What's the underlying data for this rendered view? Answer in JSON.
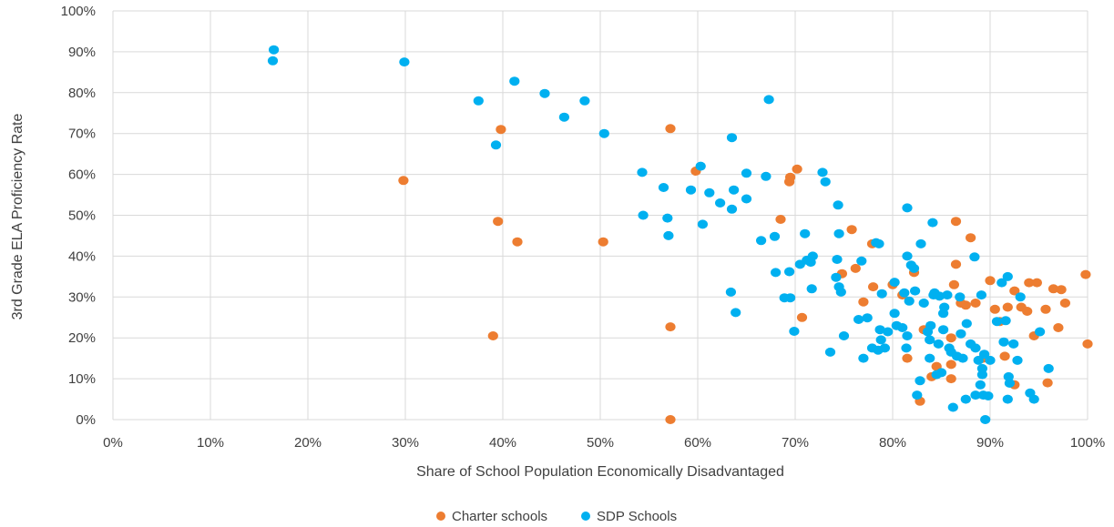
{
  "chart_data": {
    "type": "scatter",
    "title": "",
    "xlabel": "Share of School Population Economically Disadvantaged",
    "ylabel": "3rd Grade ELA Proficiency Rate",
    "xlim": [
      0,
      100
    ],
    "ylim": [
      0,
      100
    ],
    "x_ticks": [
      "0%",
      "10%",
      "20%",
      "30%",
      "40%",
      "50%",
      "60%",
      "70%",
      "80%",
      "90%",
      "100%"
    ],
    "y_ticks": [
      "0%",
      "10%",
      "20%",
      "30%",
      "40%",
      "50%",
      "60%",
      "70%",
      "80%",
      "90%",
      "100%"
    ],
    "grid": true,
    "legend_position": "bottom",
    "series": [
      {
        "name": "Charter schools",
        "color": "#ed7d31",
        "points": [
          [
            29.8,
            58.5
          ],
          [
            39.8,
            71
          ],
          [
            39.5,
            48.5
          ],
          [
            41.5,
            43.5
          ],
          [
            39,
            20.5
          ],
          [
            50.3,
            43.5
          ],
          [
            57.2,
            71.2
          ],
          [
            59.8,
            60.8
          ],
          [
            57.2,
            22.7
          ],
          [
            57.2,
            0
          ],
          [
            69.5,
            59.3
          ],
          [
            70.2,
            61.3
          ],
          [
            69.4,
            58.2
          ],
          [
            68.5,
            49
          ],
          [
            70.7,
            25
          ],
          [
            74.8,
            35.7
          ],
          [
            75.8,
            46.5
          ],
          [
            76.2,
            37
          ],
          [
            77,
            28.8
          ],
          [
            77.9,
            43
          ],
          [
            78,
            32.5
          ],
          [
            80,
            33
          ],
          [
            81,
            30.5
          ],
          [
            81.5,
            15
          ],
          [
            82.2,
            36
          ],
          [
            82.8,
            4.5
          ],
          [
            83.2,
            22
          ],
          [
            84,
            10.5
          ],
          [
            84.5,
            13
          ],
          [
            86,
            20
          ],
          [
            86,
            13.5
          ],
          [
            86.3,
            33
          ],
          [
            86.5,
            48.5
          ],
          [
            86.5,
            38
          ],
          [
            86,
            10
          ],
          [
            87,
            28.5
          ],
          [
            87.5,
            28
          ],
          [
            88,
            44.5
          ],
          [
            88.5,
            28.5
          ],
          [
            89.3,
            15
          ],
          [
            90,
            34
          ],
          [
            90.5,
            27
          ],
          [
            91,
            24
          ],
          [
            91.5,
            15.5
          ],
          [
            91.8,
            27.5
          ],
          [
            92.5,
            31.5
          ],
          [
            92.5,
            8.5
          ],
          [
            93.2,
            27.5
          ],
          [
            93.8,
            26.5
          ],
          [
            94,
            33.5
          ],
          [
            94.5,
            20.5
          ],
          [
            94.8,
            33.5
          ],
          [
            95.7,
            27
          ],
          [
            95.9,
            9
          ],
          [
            96.5,
            32
          ],
          [
            97,
            22.5
          ],
          [
            97.3,
            31.8
          ],
          [
            97.7,
            28.5
          ],
          [
            99.8,
            35.5
          ],
          [
            100,
            18.5
          ]
        ]
      },
      {
        "name": "SDP Schools",
        "color": "#00b0f0",
        "points": [
          [
            16.5,
            90.5
          ],
          [
            16.4,
            87.8
          ],
          [
            29.9,
            87.5
          ],
          [
            37.5,
            78
          ],
          [
            41.2,
            82.8
          ],
          [
            44.3,
            79.8
          ],
          [
            48.4,
            78
          ],
          [
            46.3,
            74
          ],
          [
            39.3,
            67.2
          ],
          [
            50.4,
            70
          ],
          [
            54.3,
            60.5
          ],
          [
            54.4,
            50
          ],
          [
            56.5,
            56.8
          ],
          [
            56.9,
            49.3
          ],
          [
            57,
            45
          ],
          [
            59.3,
            56.2
          ],
          [
            60.3,
            62
          ],
          [
            60.5,
            47.8
          ],
          [
            61.2,
            55.5
          ],
          [
            62.3,
            53
          ],
          [
            63.5,
            69
          ],
          [
            63.5,
            51.5
          ],
          [
            63.7,
            56.2
          ],
          [
            63.4,
            31.2
          ],
          [
            63.9,
            26.2
          ],
          [
            65,
            60.3
          ],
          [
            65,
            54
          ],
          [
            66.5,
            43.8
          ],
          [
            67.3,
            78.3
          ],
          [
            67,
            59.5
          ],
          [
            67.9,
            44.8
          ],
          [
            68,
            36
          ],
          [
            68.9,
            29.8
          ],
          [
            69.4,
            36.2
          ],
          [
            69.5,
            29.8
          ],
          [
            69.9,
            21.6
          ],
          [
            70.5,
            38
          ],
          [
            71,
            45.5
          ],
          [
            71.2,
            39
          ],
          [
            71.6,
            38.5
          ],
          [
            71.8,
            40
          ],
          [
            71.7,
            32
          ],
          [
            72.8,
            60.5
          ],
          [
            73.1,
            58.2
          ],
          [
            73.6,
            16.5
          ],
          [
            74.2,
            34.8
          ],
          [
            74.5,
            45.5
          ],
          [
            74.4,
            52.5
          ],
          [
            74.3,
            39.2
          ],
          [
            74.5,
            32.5
          ],
          [
            74.7,
            31.2
          ],
          [
            75,
            20.5
          ],
          [
            76.5,
            24.5
          ],
          [
            76.8,
            38.8
          ],
          [
            77,
            15
          ],
          [
            77.4,
            24.9
          ],
          [
            77.9,
            17.5
          ],
          [
            78.3,
            43.3
          ],
          [
            78.6,
            43
          ],
          [
            78.5,
            17
          ],
          [
            78.7,
            22
          ],
          [
            78.8,
            19.5
          ],
          [
            78.9,
            30.8
          ],
          [
            79.2,
            17.5
          ],
          [
            79.5,
            21.5
          ],
          [
            80.2,
            26
          ],
          [
            80.2,
            33.6
          ],
          [
            80.4,
            23
          ],
          [
            81,
            22.5
          ],
          [
            81.2,
            31
          ],
          [
            81.4,
            17.5
          ],
          [
            81.5,
            40
          ],
          [
            81.5,
            20.5
          ],
          [
            81.5,
            51.8
          ],
          [
            81.7,
            29
          ],
          [
            81.9,
            37.8
          ],
          [
            82.2,
            37
          ],
          [
            82.3,
            31.5
          ],
          [
            82.5,
            6
          ],
          [
            82.9,
            43
          ],
          [
            82.8,
            9.5
          ],
          [
            83.2,
            28.5
          ],
          [
            83.6,
            21.5
          ],
          [
            83.8,
            19.5
          ],
          [
            83.9,
            23
          ],
          [
            83.8,
            15
          ],
          [
            84.1,
            48.2
          ],
          [
            84.2,
            30.5
          ],
          [
            84.3,
            31
          ],
          [
            84.5,
            11
          ],
          [
            84.7,
            18.5
          ],
          [
            84.8,
            30.2
          ],
          [
            85,
            11.5
          ],
          [
            85.2,
            22
          ],
          [
            85.2,
            26
          ],
          [
            85.3,
            27.5
          ],
          [
            85.6,
            30.5
          ],
          [
            85.8,
            17.5
          ],
          [
            86,
            16.5
          ],
          [
            86.2,
            3
          ],
          [
            86.6,
            15.5
          ],
          [
            86.9,
            30
          ],
          [
            87,
            21
          ],
          [
            87.2,
            15
          ],
          [
            87.5,
            5
          ],
          [
            87.6,
            23.5
          ],
          [
            88,
            18.5
          ],
          [
            88.4,
            39.8
          ],
          [
            88.5,
            17.5
          ],
          [
            88.5,
            6
          ],
          [
            88.8,
            14.5
          ],
          [
            89,
            8.5
          ],
          [
            89.1,
            30.5
          ],
          [
            89.2,
            11
          ],
          [
            89.2,
            12.5
          ],
          [
            89.3,
            6
          ],
          [
            89.4,
            16
          ],
          [
            89.5,
            0
          ],
          [
            89.8,
            5.8
          ],
          [
            90,
            14.5
          ],
          [
            90.7,
            24
          ],
          [
            91.2,
            33.5
          ],
          [
            91.4,
            19
          ],
          [
            91.6,
            24.2
          ],
          [
            91.8,
            35
          ],
          [
            91.9,
            10.5
          ],
          [
            91.8,
            5
          ],
          [
            92,
            8.9
          ],
          [
            92.4,
            18.5
          ],
          [
            92.8,
            14.5
          ],
          [
            93.1,
            30
          ],
          [
            94.1,
            6.5
          ],
          [
            94.5,
            5
          ],
          [
            95.1,
            21.5
          ],
          [
            96,
            12.5
          ]
        ]
      }
    ]
  },
  "legend": {
    "items": [
      {
        "label": "Charter schools",
        "color": "#ed7d31"
      },
      {
        "label": "SDP Schools",
        "color": "#00b0f0"
      }
    ]
  }
}
